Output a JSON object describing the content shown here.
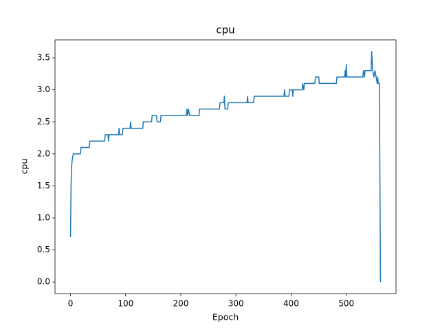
{
  "chart_data": {
    "type": "line",
    "title": "cpu",
    "x_label": "Epoch",
    "y_label": "cpu",
    "color": "#1f77b4",
    "grid": false,
    "x": [
      0,
      1,
      2,
      3,
      5,
      18,
      19,
      34,
      35,
      62,
      63,
      68,
      69,
      70,
      87,
      88,
      89,
      94,
      95,
      108,
      109,
      110,
      131,
      132,
      147,
      148,
      156,
      157,
      163,
      164,
      210,
      211,
      212,
      214,
      216,
      233,
      234,
      270,
      271,
      278,
      279,
      280,
      285,
      286,
      320,
      321,
      322,
      332,
      333,
      387,
      388,
      389,
      396,
      397,
      402,
      403,
      404,
      420,
      421,
      423,
      424,
      443,
      444,
      450,
      451,
      482,
      483,
      497,
      498,
      499,
      500,
      501,
      530,
      531,
      533,
      534,
      545,
      546,
      548,
      550,
      552,
      554,
      556,
      557,
      558,
      560,
      562
    ],
    "values": [
      0.7,
      1.5,
      1.8,
      1.9,
      2.0,
      2.0,
      2.1,
      2.1,
      2.2,
      2.2,
      2.3,
      2.3,
      2.2,
      2.3,
      2.3,
      2.4,
      2.3,
      2.3,
      2.4,
      2.4,
      2.5,
      2.4,
      2.4,
      2.5,
      2.5,
      2.6,
      2.6,
      2.5,
      2.5,
      2.6,
      2.6,
      2.7,
      2.6,
      2.7,
      2.6,
      2.6,
      2.7,
      2.7,
      2.8,
      2.8,
      2.9,
      2.7,
      2.7,
      2.8,
      2.8,
      2.9,
      2.8,
      2.8,
      2.9,
      2.9,
      3.0,
      2.9,
      2.9,
      3.0,
      3.0,
      2.9,
      3.0,
      3.0,
      3.1,
      3.0,
      3.1,
      3.1,
      3.2,
      3.2,
      3.1,
      3.1,
      3.2,
      3.2,
      3.3,
      3.2,
      3.4,
      3.2,
      3.2,
      3.3,
      3.2,
      3.3,
      3.3,
      3.6,
      3.3,
      3.2,
      3.3,
      3.2,
      3.1,
      3.2,
      3.1,
      3.1,
      0.0
    ],
    "xlim": [
      -28.1,
      590.1
    ],
    "ylim": [
      -0.18,
      3.78
    ],
    "xticks": [
      0,
      100,
      200,
      300,
      400,
      500
    ],
    "yticks": [
      {
        "value": 0,
        "label": "0.0"
      },
      0.5,
      {
        "value": 1,
        "label": "1.0"
      },
      1.5,
      {
        "value": 2,
        "label": "2.0"
      },
      2.5,
      {
        "value": 3,
        "label": "3.0"
      },
      3.5
    ]
  }
}
